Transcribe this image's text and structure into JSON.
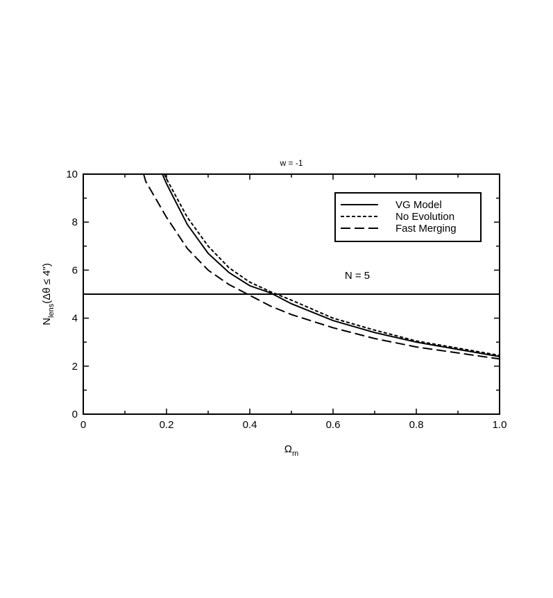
{
  "chart_data": {
    "type": "line",
    "title": "w = -1",
    "xlabel": "Ω",
    "xlabel_sub": "m",
    "ylabel": "N",
    "ylabel_sub": "lens",
    "ylabel_suffix": "(Δθ ≤ 4\")",
    "xlim": [
      0,
      1
    ],
    "xticks": [
      0,
      0.2,
      0.4,
      0.6,
      0.8,
      {
        "value": 1,
        "label": "1.0"
      }
    ],
    "xminorticks": [
      0.1,
      0.3,
      0.5,
      0.7,
      0.9
    ],
    "ylim": [
      0,
      10
    ],
    "yticks": [
      0,
      2,
      4,
      6,
      8,
      10
    ],
    "yminorticks": [
      1,
      3,
      5,
      7,
      9
    ],
    "legend": "upper right",
    "reference_line": {
      "value": 5,
      "label": "N = 5"
    },
    "series": [
      {
        "name": "VG Model",
        "color": "#000000",
        "dash": "none",
        "x": [
          0.19,
          0.2,
          0.25,
          0.3,
          0.35,
          0.4,
          0.45,
          0.5,
          0.6,
          0.7,
          0.8,
          0.9,
          1.0
        ],
        "values": [
          10,
          9.6,
          7.9,
          6.7,
          5.9,
          5.35,
          5.05,
          4.6,
          3.9,
          3.4,
          3.0,
          2.7,
          2.4
        ]
      },
      {
        "name": "No Evolution",
        "color": "#000000",
        "dash": "5,3",
        "x": [
          0.195,
          0.2,
          0.25,
          0.3,
          0.35,
          0.4,
          0.45,
          0.5,
          0.6,
          0.7,
          0.8,
          0.9,
          1.0
        ],
        "values": [
          10,
          9.8,
          8.2,
          7.0,
          6.1,
          5.5,
          5.1,
          4.75,
          4.0,
          3.5,
          3.05,
          2.75,
          2.45
        ]
      },
      {
        "name": "Fast Merging",
        "color": "#000000",
        "dash": "14,6",
        "x": [
          0.145,
          0.15,
          0.2,
          0.25,
          0.3,
          0.35,
          0.4,
          0.45,
          0.5,
          0.6,
          0.7,
          0.8,
          0.9,
          1.0
        ],
        "values": [
          10,
          9.7,
          8.2,
          6.9,
          6.0,
          5.4,
          4.95,
          4.5,
          4.15,
          3.6,
          3.15,
          2.8,
          2.55,
          2.3
        ]
      }
    ]
  }
}
